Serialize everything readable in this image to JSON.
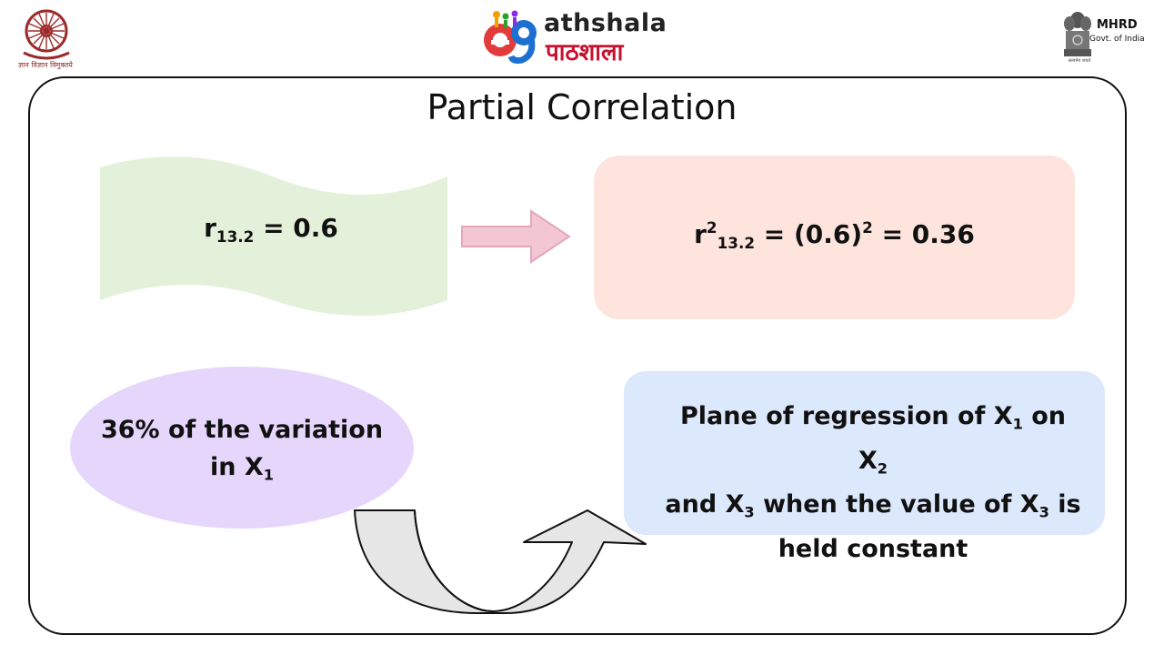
{
  "header": {
    "left_logo_caption": "ज्ञान विज्ञान विमुक्तये",
    "center_logo_en": "athshala",
    "center_logo_hi": "पाठशाला",
    "right_logo_title": "MHRD",
    "right_logo_subtitle": "Govt. of India",
    "right_logo_motto": "सत्यमेव जयते"
  },
  "slide": {
    "title": "Partial Correlation",
    "wave": {
      "base": "r",
      "sub": "13.2",
      "rest": " = 0.6"
    },
    "result": {
      "base": "r",
      "sup": "2",
      "sub": "13.2",
      "mid": " = (0.6)",
      "sup2": "2",
      "rest": " = 0.36"
    },
    "ellipse": {
      "line1": "36% of the variation",
      "line2_pre": "in X",
      "line2_sub": "1"
    },
    "plane": {
      "p1": "Plane of regression of X",
      "s1": "1",
      "p2": " on X",
      "s2": "2",
      "p3": "and X",
      "s3": "3",
      "p4": " when the value of X",
      "s4": "3",
      "p5": " is",
      "p6": "held constant"
    }
  },
  "colors": {
    "wave_fill": "#e4f1da",
    "result_fill": "#fde4dc",
    "ellipse_fill": "#e7d6fb",
    "plane_fill": "#dce8fb",
    "arrow_fill": "#f2c6d2",
    "uturn_fill": "#e6e6e6"
  }
}
